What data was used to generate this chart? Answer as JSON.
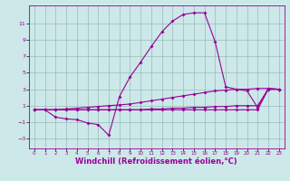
{
  "bg_color": "#cce8e8",
  "line_color": "#990099",
  "grid_color": "#99bbbb",
  "xlabel": "Windchill (Refroidissement éolien,°C)",
  "xlabel_fontsize": 6.0,
  "ylabel_ticks": [
    -3,
    -1,
    1,
    3,
    5,
    7,
    9,
    11
  ],
  "xlim": [
    -0.5,
    23.5
  ],
  "ylim": [
    -4.2,
    13.2
  ],
  "xticks": [
    0,
    1,
    2,
    3,
    4,
    5,
    6,
    7,
    8,
    9,
    10,
    11,
    12,
    13,
    14,
    15,
    16,
    17,
    18,
    19,
    20,
    21,
    22,
    23
  ],
  "curve1_y": [
    0.5,
    0.5,
    -0.4,
    -0.6,
    -0.7,
    -1.1,
    -1.3,
    -2.6,
    2.1,
    4.5,
    6.3,
    8.2,
    10.0,
    11.3,
    12.1,
    12.3,
    12.3,
    8.8,
    3.3,
    3.0,
    2.8,
    0.8,
    3.1,
    3.0
  ],
  "curve2_y": [
    0.5,
    0.5,
    0.5,
    0.6,
    0.7,
    0.8,
    0.9,
    1.0,
    1.1,
    1.2,
    1.4,
    1.6,
    1.8,
    2.0,
    2.2,
    2.4,
    2.6,
    2.8,
    2.9,
    3.0,
    3.0,
    3.1,
    3.1,
    3.0
  ],
  "curve3_y": [
    0.5,
    0.5,
    0.5,
    0.5,
    0.5,
    0.5,
    0.5,
    0.5,
    0.5,
    0.5,
    0.5,
    0.6,
    0.6,
    0.7,
    0.7,
    0.8,
    0.8,
    0.9,
    0.9,
    1.0,
    1.0,
    1.0,
    3.0,
    3.0
  ],
  "curve4_y": [
    0.5,
    0.5,
    0.5,
    0.5,
    0.5,
    0.5,
    0.5,
    0.5,
    0.5,
    0.5,
    0.5,
    0.5,
    0.5,
    0.5,
    0.5,
    0.5,
    0.5,
    0.5,
    0.5,
    0.5,
    0.5,
    0.5,
    3.0,
    3.0
  ]
}
